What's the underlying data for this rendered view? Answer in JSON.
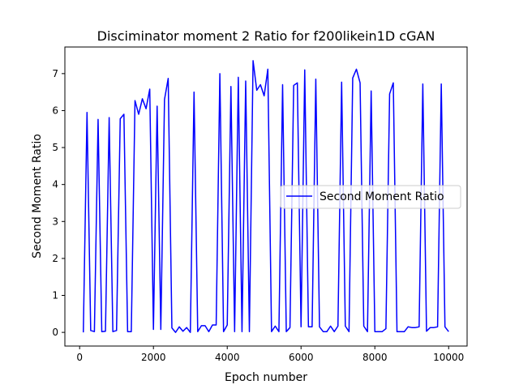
{
  "chart_data": {
    "type": "line",
    "title": "Disciminator moment 2 Ratio for f200likein1D cGAN",
    "xlabel": "Epoch number",
    "ylabel": "Second Moment Ratio",
    "xlim": [
      -400,
      10500
    ],
    "ylim": [
      -0.37,
      7.72
    ],
    "xticks": [
      0,
      2000,
      4000,
      6000,
      8000,
      10000
    ],
    "yticks": [
      0,
      1,
      2,
      3,
      4,
      5,
      6,
      7
    ],
    "grid": false,
    "legend_position": "center-right",
    "series": [
      {
        "name": "Second Moment Ratio",
        "color": "#0000ff",
        "x": [
          100,
          200,
          300,
          400,
          500,
          600,
          700,
          800,
          900,
          1000,
          1100,
          1200,
          1300,
          1400,
          1500,
          1600,
          1700,
          1800,
          1900,
          2000,
          2100,
          2200,
          2300,
          2400,
          2500,
          2600,
          2700,
          2800,
          2900,
          3000,
          3100,
          3200,
          3300,
          3400,
          3500,
          3600,
          3700,
          3800,
          3900,
          4000,
          4100,
          4200,
          4300,
          4400,
          4500,
          4600,
          4700,
          4800,
          4900,
          5000,
          5100,
          5200,
          5300,
          5400,
          5500,
          5600,
          5700,
          5800,
          5900,
          6000,
          6100,
          6200,
          6300,
          6400,
          6500,
          6600,
          6700,
          6800,
          6900,
          7000,
          7100,
          7200,
          7300,
          7400,
          7500,
          7600,
          7700,
          7800,
          7900,
          8000,
          8100,
          8200,
          8300,
          8400,
          8500,
          8600,
          8700,
          8800,
          8900,
          9000,
          9100,
          9200,
          9300,
          9400,
          9500,
          9600,
          9700,
          9800,
          9900,
          10000
        ],
        "y": [
          0.0,
          5.95,
          0.05,
          0.02,
          5.76,
          0.02,
          0.03,
          5.81,
          0.02,
          0.05,
          5.78,
          5.9,
          0.02,
          0.02,
          6.27,
          5.9,
          6.32,
          6.05,
          6.58,
          0.08,
          6.12,
          0.08,
          6.3,
          6.87,
          0.12,
          0.0,
          0.15,
          0.03,
          0.13,
          0.0,
          6.5,
          0.02,
          0.18,
          0.18,
          0.02,
          0.2,
          0.2,
          7.0,
          0.02,
          0.2,
          6.65,
          0.02,
          6.9,
          0.02,
          6.8,
          0.02,
          7.35,
          6.55,
          6.7,
          6.4,
          7.12,
          0.02,
          0.17,
          0.02,
          6.7,
          0.02,
          0.13,
          6.68,
          6.75,
          0.15,
          7.1,
          0.15,
          0.15,
          6.85,
          0.15,
          0.02,
          0.02,
          0.17,
          0.02,
          0.17,
          6.77,
          0.17,
          0.02,
          6.88,
          7.12,
          6.75,
          0.17,
          0.02,
          6.53,
          0.02,
          0.02,
          0.02,
          0.1,
          6.45,
          6.75,
          0.02,
          0.02,
          0.02,
          0.15,
          0.13,
          0.13,
          0.15,
          6.72,
          0.03,
          0.13,
          0.13,
          0.15,
          6.72,
          0.15,
          0.02
        ]
      }
    ]
  }
}
